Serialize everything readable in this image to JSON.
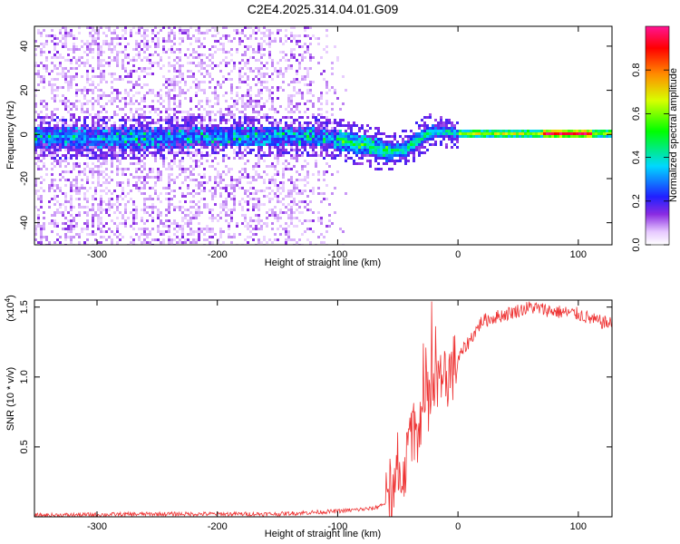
{
  "title": "C2E4.2025.314.04.01.G09",
  "chart_data": [
    {
      "type": "heatmap",
      "name": "spectrogram",
      "xlabel": "Height of straight line (km)",
      "ylabel": "Frequency (Hz)",
      "xlim": [
        -352,
        128
      ],
      "ylim": [
        -50,
        49
      ],
      "xticks": [
        -300,
        -200,
        -100,
        0,
        100
      ],
      "yticks": [
        -40,
        -20,
        0,
        20,
        40
      ],
      "ridge": [
        {
          "x": -352,
          "y": -1
        },
        {
          "x": -250,
          "y": -1
        },
        {
          "x": -150,
          "y": 0
        },
        {
          "x": -120,
          "y": 0
        },
        {
          "x": -100,
          "y": -2
        },
        {
          "x": -80,
          "y": -4
        },
        {
          "x": -60,
          "y": -7
        },
        {
          "x": -45,
          "y": -6
        },
        {
          "x": -35,
          "y": -2
        },
        {
          "x": -25,
          "y": 1
        },
        {
          "x": -15,
          "y": 2
        },
        {
          "x": 0,
          "y": 1
        },
        {
          "x": 50,
          "y": 1
        },
        {
          "x": 100,
          "y": 1
        },
        {
          "x": 128,
          "y": 1
        }
      ],
      "colorbar": {
        "label": "Normalized spectral amplitude",
        "ticks": [
          "0.0",
          "0.2",
          "0.4",
          "0.6",
          "0.8"
        ],
        "range": [
          0,
          1
        ]
      }
    },
    {
      "type": "line",
      "name": "snr",
      "xlabel": "Height of straight line (km)",
      "ylabel": "SNR (10 * v/v)",
      "multiplier_label": "(x10",
      "multiplier_exp": "4",
      "xlim": [
        -352,
        128
      ],
      "ylim": [
        0,
        1.55
      ],
      "xticks": [
        -300,
        -200,
        -100,
        0,
        100
      ],
      "yticks": [
        "0.5",
        "1.0",
        "1.5"
      ],
      "series": [
        {
          "color": "#ee3333",
          "points": [
            {
              "x": -352,
              "y": 0.01
            },
            {
              "x": -250,
              "y": 0.02
            },
            {
              "x": -150,
              "y": 0.02
            },
            {
              "x": -100,
              "y": 0.04
            },
            {
              "x": -70,
              "y": 0.06
            },
            {
              "x": -55,
              "y": 0.12
            },
            {
              "x": -45,
              "y": 0.35
            },
            {
              "x": -35,
              "y": 0.6
            },
            {
              "x": -25,
              "y": 0.85
            },
            {
              "x": -15,
              "y": 0.95
            },
            {
              "x": -5,
              "y": 1.05
            },
            {
              "x": 5,
              "y": 1.2
            },
            {
              "x": 20,
              "y": 1.4
            },
            {
              "x": 40,
              "y": 1.45
            },
            {
              "x": 60,
              "y": 1.5
            },
            {
              "x": 80,
              "y": 1.47
            },
            {
              "x": 100,
              "y": 1.45
            },
            {
              "x": 115,
              "y": 1.4
            },
            {
              "x": 128,
              "y": 1.38
            }
          ]
        }
      ]
    }
  ]
}
